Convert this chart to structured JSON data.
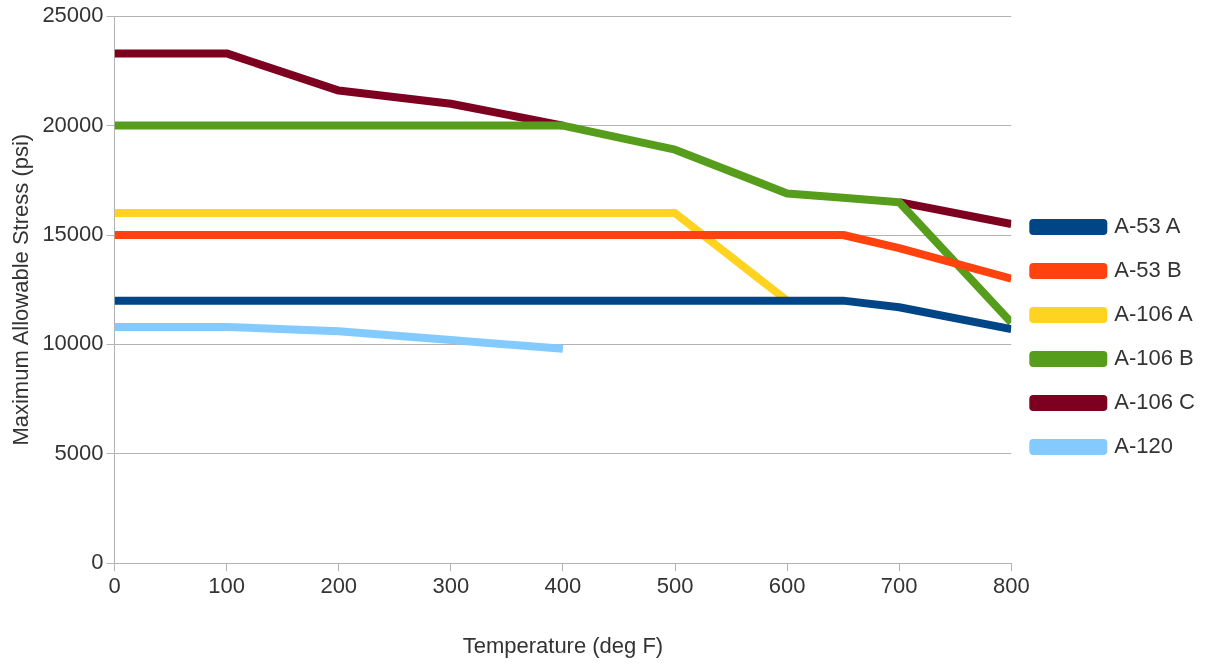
{
  "chart_data": {
    "type": "line",
    "xlabel": "Temperature (deg F)",
    "ylabel": "Maximum Allowable Stress (psi)",
    "xlim": [
      0,
      800
    ],
    "xticks": [
      0,
      100,
      200,
      300,
      400,
      500,
      600,
      700,
      800
    ],
    "ylim": [
      0,
      25000
    ],
    "yticks": [
      0,
      5000,
      10000,
      15000,
      20000,
      25000
    ],
    "grid": "y",
    "legend": "right",
    "marker": "none",
    "line_style": "solid",
    "series": [
      {
        "name": "A-53 A",
        "color": "#004586",
        "x": [
          0,
          100,
          200,
          300,
          400,
          500,
          600,
          650,
          700,
          800
        ],
        "values": [
          12000,
          12000,
          12000,
          12000,
          12000,
          12000,
          12000,
          12000,
          11700,
          10700
        ]
      },
      {
        "name": "A-53 B",
        "color": "#ff420e",
        "x": [
          0,
          100,
          200,
          300,
          400,
          500,
          600,
          650,
          700,
          800
        ],
        "values": [
          15000,
          15000,
          15000,
          15000,
          15000,
          15000,
          15000,
          15000,
          14400,
          13000
        ]
      },
      {
        "name": "A-106 A",
        "color": "#ffd320",
        "x": [
          0,
          100,
          200,
          300,
          400,
          500,
          600
        ],
        "values": [
          16000,
          16000,
          16000,
          16000,
          16000,
          16000,
          12000
        ]
      },
      {
        "name": "A-106 B",
        "color": "#579d1c",
        "x": [
          0,
          100,
          200,
          300,
          400,
          500,
          600,
          650,
          700,
          800
        ],
        "values": [
          20000,
          20000,
          20000,
          20000,
          20000,
          18900,
          16900,
          16700,
          16500,
          11000
        ]
      },
      {
        "name": "A-106 C",
        "color": "#7e0021",
        "x": [
          0,
          100,
          200,
          300,
          400,
          500,
          600,
          650,
          700,
          800
        ],
        "values": [
          23300,
          23300,
          21600,
          21000,
          20000,
          null,
          null,
          null,
          16500,
          15500
        ]
      },
      {
        "name": "A-120",
        "color": "#83caff",
        "x": [
          0,
          100,
          200,
          300,
          400
        ],
        "values": [
          10800,
          10800,
          10600,
          10200,
          9800
        ]
      }
    ]
  }
}
